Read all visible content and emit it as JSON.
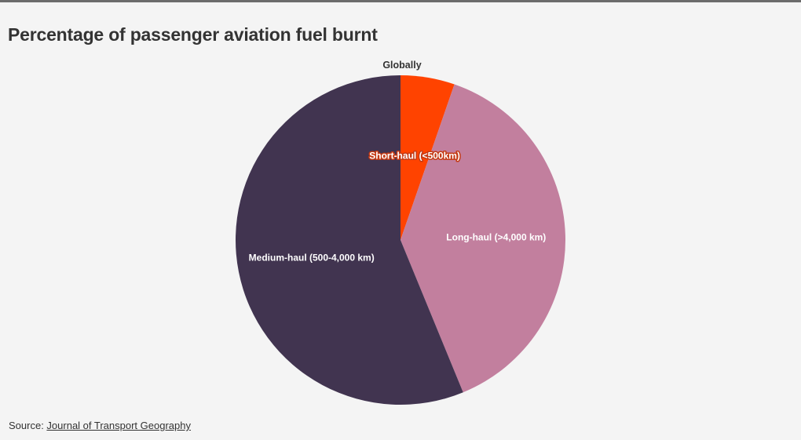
{
  "title": "Percentage of passenger aviation fuel burnt",
  "source": {
    "prefix": "Source: ",
    "link_text": "Journal of Transport Geography"
  },
  "chart_data": {
    "type": "pie",
    "subtitle": "Globally",
    "slices": [
      {
        "label": "Short-haul (<500km)",
        "value": 5.3,
        "color": "#ff4300"
      },
      {
        "label": "Long-haul (>4,000 km)",
        "value": 38.5,
        "color": "#c27f9e"
      },
      {
        "label": "Medium-haul (500-4,000 km)",
        "value": 56.2,
        "color": "#413450"
      }
    ],
    "start_angle_deg": 0,
    "direction": "clockwise"
  }
}
